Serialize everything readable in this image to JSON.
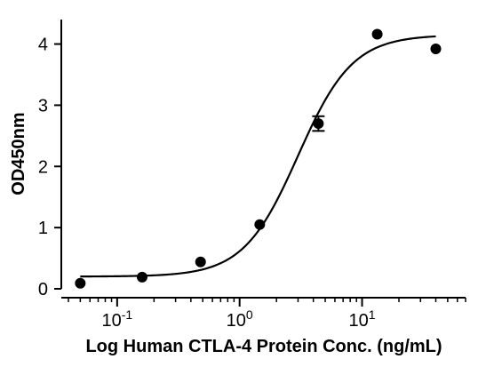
{
  "chart_data": {
    "type": "scatter",
    "xlabel": "Log Human CTLA-4 Protein Conc. (ng/mL)",
    "ylabel": "OD450nm",
    "x_scale": "log",
    "xlim": [
      0.035,
      70
    ],
    "ylim": [
      0,
      4.4
    ],
    "grid": false,
    "legend": "none",
    "colors": {
      "points": "#000000",
      "curve": "#000000",
      "axis": "#000000"
    },
    "x_ticks": [
      {
        "value": 0.1,
        "base": "10",
        "exp": "-1"
      },
      {
        "value": 1,
        "base": "10",
        "exp": "0"
      },
      {
        "value": 10,
        "base": "10",
        "exp": "1"
      }
    ],
    "y_ticks": [
      {
        "value": 0,
        "label": "0"
      },
      {
        "value": 1,
        "label": "1"
      },
      {
        "value": 2,
        "label": "2"
      },
      {
        "value": 3,
        "label": "3"
      },
      {
        "value": 4,
        "label": "4"
      }
    ],
    "series": [
      {
        "points": [
          {
            "x": 0.05,
            "y": 0.09
          },
          {
            "x": 0.16,
            "y": 0.19
          },
          {
            "x": 0.48,
            "y": 0.44
          },
          {
            "x": 1.46,
            "y": 1.05
          },
          {
            "x": 4.4,
            "y": 2.7,
            "err": 0.12
          },
          {
            "x": 13.3,
            "y": 4.16
          },
          {
            "x": 40,
            "y": 3.92
          }
        ],
        "fit": {
          "model": "4PL",
          "bottom": 0.2,
          "top": 4.15,
          "ec50": 3.0,
          "hill": 1.95
        }
      }
    ]
  }
}
